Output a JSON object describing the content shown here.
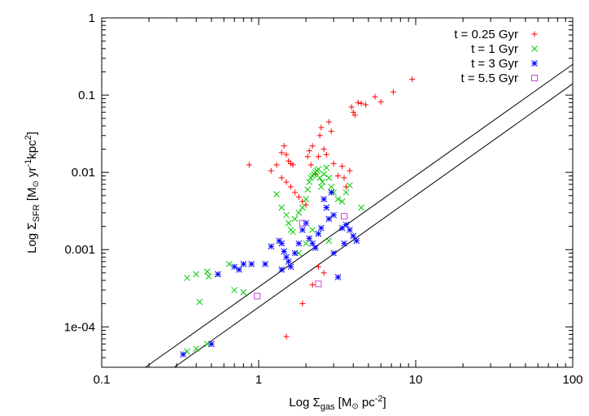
{
  "chart_data": {
    "type": "scatter",
    "title": "",
    "xlabel": {
      "prefix": "Log Σ",
      "sub": "gas",
      "main": " [M",
      "sun": "⊙",
      "rest": "  pc",
      "sup": "-2",
      "end": "]"
    },
    "ylabel": {
      "prefix": "Log Σ",
      "sub": "SFR",
      "main": " [M",
      "sun": "⊙",
      "rest": "  yr",
      "sup1": "-1",
      "mid": "kpc",
      "sup2": "2",
      "end": "]"
    },
    "xscale": "log",
    "yscale": "log",
    "xlim": [
      0.1,
      100
    ],
    "ylim": [
      3e-05,
      1
    ],
    "xticks": [
      {
        "v": 0.1,
        "label": "0.1"
      },
      {
        "v": 1,
        "label": "1"
      },
      {
        "v": 10,
        "label": "10"
      },
      {
        "v": 100,
        "label": "100"
      }
    ],
    "yticks": [
      {
        "v": 0.0001,
        "label": "1e-04"
      },
      {
        "v": 0.001,
        "label": "0.001"
      },
      {
        "v": 0.01,
        "label": "0.01"
      },
      {
        "v": 0.1,
        "label": "0.1"
      },
      {
        "v": 1,
        "label": "1"
      }
    ],
    "legend_position": "top-right",
    "reference_lines": [
      {
        "name": "upper-relation",
        "from": [
          0.19,
          3e-05
        ],
        "to": [
          100,
          0.25
        ]
      },
      {
        "name": "lower-relation",
        "from": [
          0.29,
          3e-05
        ],
        "to": [
          100,
          0.14
        ]
      }
    ],
    "series": [
      {
        "name": "t = 0.25 Gyr",
        "marker": "plus",
        "color": "#ff0000",
        "legend": {
          "a": "t = 0.25 Gyr"
        },
        "points": [
          [
            0.87,
            0.0125
          ],
          [
            1.2,
            0.0105
          ],
          [
            1.3,
            0.0125
          ],
          [
            1.4,
            0.018
          ],
          [
            1.45,
            0.022
          ],
          [
            1.5,
            0.017
          ],
          [
            1.55,
            0.014
          ],
          [
            1.6,
            0.013
          ],
          [
            1.65,
            0.0125
          ],
          [
            1.4,
            0.0085
          ],
          [
            1.5,
            0.0075
          ],
          [
            1.6,
            0.0065
          ],
          [
            1.7,
            0.0055
          ],
          [
            1.8,
            0.0048
          ],
          [
            1.9,
            0.0042
          ],
          [
            2.0,
            0.0038
          ],
          [
            2.05,
            0.016
          ],
          [
            2.1,
            0.019
          ],
          [
            2.2,
            0.022
          ],
          [
            2.15,
            0.0125
          ],
          [
            2.3,
            0.0095
          ],
          [
            2.4,
            0.016
          ],
          [
            2.45,
            0.03
          ],
          [
            2.5,
            0.038
          ],
          [
            2.6,
            0.02
          ],
          [
            2.7,
            0.017
          ],
          [
            2.8,
            0.045
          ],
          [
            2.9,
            0.034
          ],
          [
            3.0,
            0.013
          ],
          [
            3.2,
            0.009
          ],
          [
            3.4,
            0.012
          ],
          [
            3.5,
            0.0085
          ],
          [
            3.6,
            0.0065
          ],
          [
            3.8,
            0.0105
          ],
          [
            3.9,
            0.07
          ],
          [
            4.0,
            0.06
          ],
          [
            4.1,
            0.055
          ],
          [
            4.3,
            0.08
          ],
          [
            4.5,
            0.078
          ],
          [
            4.8,
            0.075
          ],
          [
            5.5,
            0.095
          ],
          [
            6.0,
            0.082
          ],
          [
            7.2,
            0.11
          ],
          [
            9.5,
            0.16
          ],
          [
            2.4,
            0.0006
          ],
          [
            2.6,
            0.0005
          ],
          [
            1.9,
            0.0002
          ],
          [
            1.5,
            7.5e-05
          ],
          [
            2.2,
            0.00035
          ]
        ]
      },
      {
        "name": "t = 1 Gyr",
        "marker": "cross",
        "color": "#00cc00",
        "legend": {
          "a": "t =   1 Gyr"
        },
        "points": [
          [
            0.35,
            0.00043
          ],
          [
            0.4,
            0.00048
          ],
          [
            0.47,
            0.00052
          ],
          [
            0.48,
            0.00045
          ],
          [
            0.55,
            0.00048
          ],
          [
            0.65,
            0.00065
          ],
          [
            0.7,
            0.0003
          ],
          [
            0.8,
            0.00028
          ],
          [
            0.42,
            0.00021
          ],
          [
            0.35,
            4.8e-05
          ],
          [
            0.4,
            5.2e-05
          ],
          [
            0.47,
            6e-05
          ],
          [
            1.3,
            0.0052
          ],
          [
            1.4,
            0.0035
          ],
          [
            1.5,
            0.0028
          ],
          [
            1.55,
            0.0022
          ],
          [
            1.6,
            0.0018
          ],
          [
            1.65,
            0.0017
          ],
          [
            1.7,
            0.0025
          ],
          [
            1.8,
            0.003
          ],
          [
            1.9,
            0.0035
          ],
          [
            2.0,
            0.0045
          ],
          [
            2.05,
            0.006
          ],
          [
            2.1,
            0.0075
          ],
          [
            2.15,
            0.0085
          ],
          [
            2.2,
            0.009
          ],
          [
            2.25,
            0.0095
          ],
          [
            2.3,
            0.01
          ],
          [
            2.35,
            0.0105
          ],
          [
            2.4,
            0.011
          ],
          [
            2.45,
            0.0085
          ],
          [
            2.5,
            0.0065
          ],
          [
            2.55,
            0.0075
          ],
          [
            2.6,
            0.0095
          ],
          [
            2.7,
            0.0115
          ],
          [
            2.8,
            0.0085
          ],
          [
            2.9,
            0.0065
          ],
          [
            3.0,
            0.0055
          ],
          [
            3.2,
            0.0045
          ],
          [
            3.4,
            0.0042
          ],
          [
            3.6,
            0.0055
          ],
          [
            3.8,
            0.0068
          ],
          [
            4.5,
            0.0035
          ],
          [
            2.2,
            0.0018
          ],
          [
            2.4,
            0.0016
          ],
          [
            2.8,
            0.0013
          ],
          [
            2.0,
            0.0012
          ],
          [
            1.8,
            0.0009
          ]
        ]
      },
      {
        "name": "t = 3 Gyr",
        "marker": "star",
        "color": "#0000ff",
        "legend": {
          "a": "t =   3 Gyr"
        },
        "points": [
          [
            0.33,
            4.4e-05
          ],
          [
            0.5,
            6e-05
          ],
          [
            0.55,
            0.00048
          ],
          [
            0.7,
            0.0006
          ],
          [
            0.75,
            0.00055
          ],
          [
            0.8,
            0.00065
          ],
          [
            0.9,
            0.00065
          ],
          [
            1.1,
            0.00065
          ],
          [
            1.2,
            0.0011
          ],
          [
            1.35,
            0.0013
          ],
          [
            1.4,
            0.0012
          ],
          [
            1.45,
            0.00095
          ],
          [
            1.5,
            0.0008
          ],
          [
            1.4,
            0.00055
          ],
          [
            1.55,
            0.0007
          ],
          [
            1.6,
            0.0006
          ],
          [
            1.7,
            0.0009
          ],
          [
            1.8,
            0.0012
          ],
          [
            1.9,
            0.0018
          ],
          [
            2.0,
            0.0022
          ],
          [
            2.1,
            0.0014
          ],
          [
            2.2,
            0.0012
          ],
          [
            2.3,
            0.00105
          ],
          [
            2.4,
            0.0016
          ],
          [
            2.5,
            0.0019
          ],
          [
            2.6,
            0.0045
          ],
          [
            2.7,
            0.0035
          ],
          [
            2.8,
            0.0025
          ],
          [
            2.9,
            0.0055
          ],
          [
            3.0,
            0.0028
          ],
          [
            3.2,
            0.00044
          ],
          [
            3.4,
            0.0019
          ],
          [
            3.6,
            0.0021
          ],
          [
            3.8,
            0.0018
          ],
          [
            4.0,
            0.0015
          ],
          [
            4.2,
            0.0013
          ],
          [
            3.5,
            0.0012
          ],
          [
            3.0,
            0.0009
          ]
        ]
      },
      {
        "name": "t = 5.5 Gyr",
        "marker": "square",
        "color": "#cc44cc",
        "legend": {
          "a": "t =  5.5 Gyr"
        },
        "points": [
          [
            0.98,
            0.00025
          ],
          [
            1.9,
            0.0022
          ],
          [
            2.4,
            0.00036
          ],
          [
            3.5,
            0.0027
          ]
        ]
      }
    ]
  }
}
